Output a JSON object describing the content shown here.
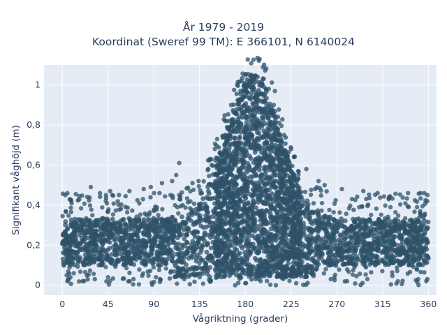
{
  "title_lines": [
    "År 1979 - 2019",
    "Koordinat (Sweref 99 TM): E 366101, N 6140024"
  ],
  "colors": {
    "background": "#ffffff",
    "plot_background": "#e5ecf6",
    "grid": "#ffffff",
    "marker": "#2e5168",
    "text": "#2a3f5f"
  },
  "chart_data": {
    "type": "scatter",
    "title": "År 1979 - 2019",
    "subtitle": "Koordinat (Sweref 99 TM): E 366101, N 6140024",
    "xlabel": "Vågriktning (grader)",
    "ylabel": "Signifikant våghöjd (m)",
    "xlim": [
      -18,
      368
    ],
    "ylim": [
      -0.05,
      1.1
    ],
    "x_ticks": [
      0,
      45,
      90,
      135,
      180,
      225,
      270,
      315,
      360
    ],
    "x_tick_labels": [
      "0",
      "45",
      "90",
      "135",
      "180",
      "225",
      "270",
      "315",
      "360"
    ],
    "y_ticks": [
      0,
      0.2,
      0.4,
      0.6,
      0.8,
      1
    ],
    "y_tick_labels": [
      "0",
      "0,2",
      "0,4",
      "0,6",
      "0,8",
      "1"
    ],
    "grid": true,
    "legend": "none",
    "marker_opacity": 0.75,
    "distribution_note": "Dense cloud of points: across all directions wave heights ~0.05-0.45 m; peak near 180-200 degrees reaching ~1.05 m; shoulders widening from ~135 to ~250 degrees.",
    "series": [
      {
        "points": [
          [
            5,
            0.46
          ],
          [
            3,
            0.45
          ],
          [
            28,
            0.49
          ],
          [
            37,
            0.46
          ],
          [
            47,
            0.47
          ],
          [
            66,
            0.47
          ],
          [
            80,
            0.48
          ],
          [
            87,
            0.49
          ],
          [
            98,
            0.51
          ],
          [
            108,
            0.52
          ],
          [
            112,
            0.55
          ],
          [
            115,
            0.61
          ],
          [
            128,
            0.51
          ],
          [
            134,
            0.52
          ],
          [
            147,
            0.6
          ],
          [
            150,
            0.68
          ],
          [
            155,
            0.66
          ],
          [
            232,
            0.57
          ],
          [
            240,
            0.58
          ],
          [
            252,
            0.52
          ],
          [
            258,
            0.5
          ],
          [
            275,
            0.48
          ],
          [
            296,
            0.47
          ],
          [
            310,
            0.46
          ],
          [
            321,
            0.43
          ],
          [
            340,
            0.46
          ],
          [
            356,
            0.46
          ],
          [
            359,
            0.45
          ],
          [
            5,
            0.02
          ],
          [
            20,
            0.02
          ],
          [
            32,
            0.03
          ],
          [
            45,
            0.04
          ],
          [
            70,
            0.03
          ],
          [
            92,
            0.04
          ],
          [
            120,
            0.03
          ],
          [
            135,
            0.04
          ],
          [
            170,
            0.0
          ],
          [
            180,
            0.01
          ],
          [
            195,
            0.02
          ],
          [
            210,
            0.0
          ],
          [
            230,
            0.01
          ],
          [
            264,
            0.03
          ],
          [
            280,
            0.02
          ],
          [
            300,
            0.03
          ],
          [
            330,
            0.02
          ],
          [
            350,
            0.03
          ],
          [
            358,
            0.02
          ],
          [
            172,
            1.0
          ],
          [
            176,
            1.02
          ],
          [
            180,
            1.05
          ],
          [
            186,
            1.05
          ],
          [
            192,
            1.04
          ],
          [
            198,
            1.03
          ],
          [
            203,
            0.98
          ],
          [
            208,
            0.9
          ],
          [
            212,
            0.84
          ],
          [
            218,
            0.75
          ],
          [
            225,
            0.68
          ],
          [
            166,
            0.9
          ],
          [
            162,
            0.82
          ],
          [
            158,
            0.74
          ],
          [
            228,
            0.64
          ]
        ]
      }
    ]
  }
}
